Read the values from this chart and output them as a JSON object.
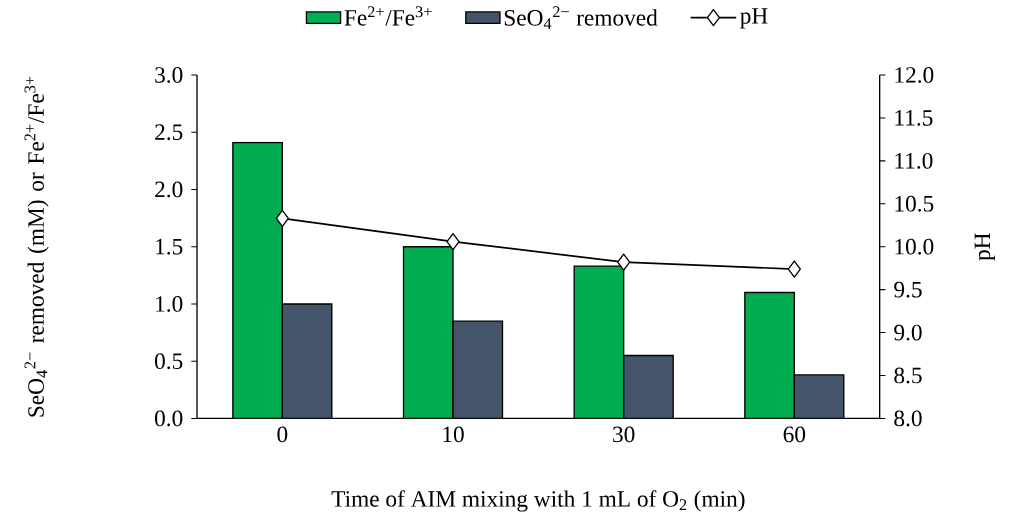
{
  "chart_data": {
    "type": "bar",
    "xlabel": "Time of AIM mixing with 1 mL of O$_{2}$ (min)",
    "ylabel": "SeO$_{4}$$^{2−}$ removed (mM) or Fe$^{2+}$/Fe$^{3+}$",
    "y2label": "pH",
    "categories": [
      "0",
      "10",
      "30",
      "60"
    ],
    "series": [
      {
        "name": "Fe$^{2+}$/Fe$^{3+}$",
        "color": "#00ad50",
        "values": [
          2.41,
          1.5,
          1.33,
          1.1
        ]
      },
      {
        "name": "SeO$_{4}$$^{2−}$ removed",
        "color": "#44546a",
        "values": [
          1.0,
          0.85,
          0.55,
          0.38
        ]
      },
      {
        "name": "pH",
        "type": "line",
        "axis": "y2",
        "color": "#000000",
        "marker": "diamond",
        "line_style": "solid",
        "values": [
          10.33,
          10.06,
          9.82,
          9.74
        ]
      }
    ],
    "ylim": [
      0,
      3
    ],
    "yticks": [
      {
        "value": 0,
        "label": "0.0"
      },
      {
        "value": 0.5,
        "label": "0.5"
      },
      {
        "value": 1,
        "label": "1.0"
      },
      {
        "value": 1.5,
        "label": "1.5"
      },
      {
        "value": 2,
        "label": "2.0"
      },
      {
        "value": 2.5,
        "label": "2.5"
      },
      {
        "value": 3,
        "label": "3.0"
      }
    ],
    "y2lim": [
      8,
      12
    ],
    "y2ticks": [
      {
        "value": 8,
        "label": "8.0"
      },
      {
        "value": 8.5,
        "label": "8.5"
      },
      {
        "value": 9,
        "label": "9.0"
      },
      {
        "value": 9.5,
        "label": "9.5"
      },
      {
        "value": 10,
        "label": "10.0"
      },
      {
        "value": 10.5,
        "label": "10.5"
      },
      {
        "value": 11,
        "label": "11.0"
      },
      {
        "value": 11.5,
        "label": "11.5"
      },
      {
        "value": 12,
        "label": "12.0"
      }
    ],
    "grid": false,
    "legend": "top"
  }
}
